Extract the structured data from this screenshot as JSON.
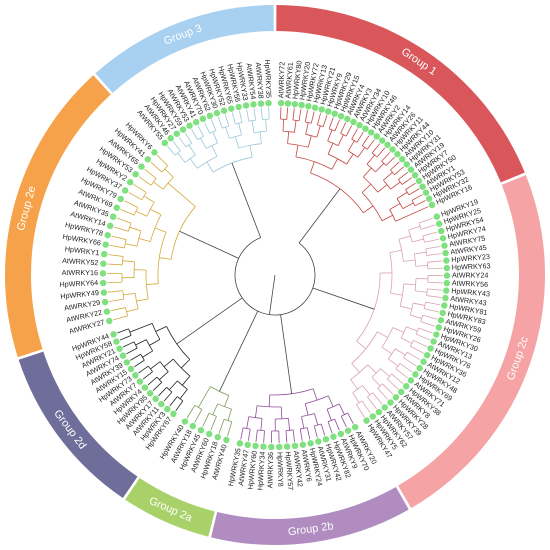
{
  "groups": [
    {
      "name": "Group 1",
      "color": "#d9575a",
      "branch_color": "#c4463f",
      "start_angle": 0,
      "end_angle": 68,
      "leaves": [
        "AtWRKY72",
        "AtWRKY61",
        "HpWRKY80",
        "HpWRKY20",
        "HpWRKY72",
        "HpWRKY13",
        "HpWRKY21",
        "HpWRKY9",
        "HpWRKY29",
        "HpWRKY15",
        "AtWRKY4",
        "AtWRKY3",
        "AtWRKY34",
        "HpWRKY10",
        "HpWRKY46",
        "AtWRKY2",
        "HpWRKY14",
        "AtWRKY26",
        "HpWRKY11",
        "HpWRKY44",
        "AtWRKY10",
        "HpWRKY31",
        "AtWRKY19",
        "HpWRKY7",
        "HpWRKY50",
        "AtWRKY1",
        "HpWRKY53",
        "HpWRKY32",
        "HpWRKY16"
      ]
    },
    {
      "name": "Group 2c",
      "color": "#f5a3a5",
      "branch_color": "#d9a3ad",
      "start_angle": 68,
      "end_angle": 150,
      "leaves": [
        "HpWRKY19",
        "HpWRKY25",
        "HpWRKY54",
        "HpWRKY74",
        "AtWRKY75",
        "AtWRKY45",
        "HpWRKY23",
        "HpWRKY63",
        "AtWRKY24",
        "AtWRKY56",
        "HpWRKY43",
        "AtWRKY43",
        "HpWRKY81",
        "HpWRKY83",
        "AtWRKY59",
        "HpWRKY26",
        "HpWRKY30",
        "AtWRKY13",
        "HpWRKY76",
        "HpWRKY36",
        "AtWRKY12",
        "HpWRKY48",
        "HpWRKY69",
        "AtWRKY71",
        "HpWRKY38",
        "AtWRKY8",
        "HpWRKY28",
        "HpWRKY39",
        "AtWRKY57",
        "HpWRKY62",
        "HpWRKY5",
        "HpWRKY47"
      ]
    },
    {
      "name": "Group 2b",
      "color": "#b08cc0",
      "branch_color": "#8e4a98",
      "start_angle": 150,
      "end_angle": 194,
      "leaves": [
        "AtWRKY20",
        "HpWRKY70",
        "AtWRKY9",
        "HpWRKY82",
        "HpWRKY42",
        "AtWRKY31",
        "HpWRKY24",
        "AtWRKY6",
        "AtWRKY42",
        "HpWRKY57",
        "HpWRKY8",
        "AtWRKY36",
        "HpWRKY34",
        "HpWRKY60",
        "AtWRKY47",
        "HpWRKY35"
      ]
    },
    {
      "name": "Group 2a",
      "color": "#a9d16a",
      "branch_color": "#7e9a5a",
      "start_angle": 194,
      "end_angle": 214,
      "leaves": [
        "AtWRKY40",
        "HpWRKY18",
        "AtWRKY60",
        "HpWRKY45",
        "AtWRKY18",
        "HpWRKY40"
      ]
    },
    {
      "name": "Group 2d",
      "color": "#6f6d9a",
      "branch_color": "#222222",
      "start_angle": 214,
      "end_angle": 252,
      "leaves": [
        "HpWRKY67",
        "HpWRKY3",
        "AtWRKY11",
        "AtWRKY17",
        "HpWRKY85",
        "HpWRKY4",
        "AtWRKY7",
        "HpWRKY73",
        "AtWRKY15",
        "AtWRKY39",
        "AtWRKY74",
        "AtWRKY21",
        "HpWRKY58",
        "HpWRKY44"
      ]
    },
    {
      "name": "Group 2e",
      "color": "#f6a24a",
      "branch_color": "#d4a93a",
      "start_angle": 252,
      "end_angle": 318,
      "leaves": [
        "AtWRKY27",
        "AtWRKY22",
        "AtWRKY29",
        "HpWRKY49",
        "HpWRKY64",
        "AtWRKY16",
        "AtWRKY52",
        "HpWRKY1",
        "HpWRKY66",
        "HpWRKY78",
        "AtWRKY14",
        "AtWRKY35",
        "AtWRKY69",
        "HpWRKY79",
        "HpWRKY37",
        "HpWRKY2",
        "HpWRKY53",
        "AtWRKY65",
        "HpWRKY41",
        "HpWRKY6"
      ]
    },
    {
      "name": "Group 3",
      "color": "#a8d0f0",
      "branch_color": "#9ac7d8",
      "start_angle": 318,
      "end_angle": 360,
      "leaves": [
        "AtWRKY55",
        "AtWRKY46",
        "HpWRKY27",
        "HpWRKY59",
        "AtWRKY53",
        "AtWRKY41",
        "AtWRKY70",
        "AtWRKY62",
        "HpWRKY30",
        "HpWRKY52",
        "HpWRKY65",
        "HpWRKY56",
        "HpWRKY33",
        "AtWRKY54",
        "AtWRKY38",
        "HpWRKY35"
      ]
    }
  ],
  "marker_color": "#7ee07e"
}
